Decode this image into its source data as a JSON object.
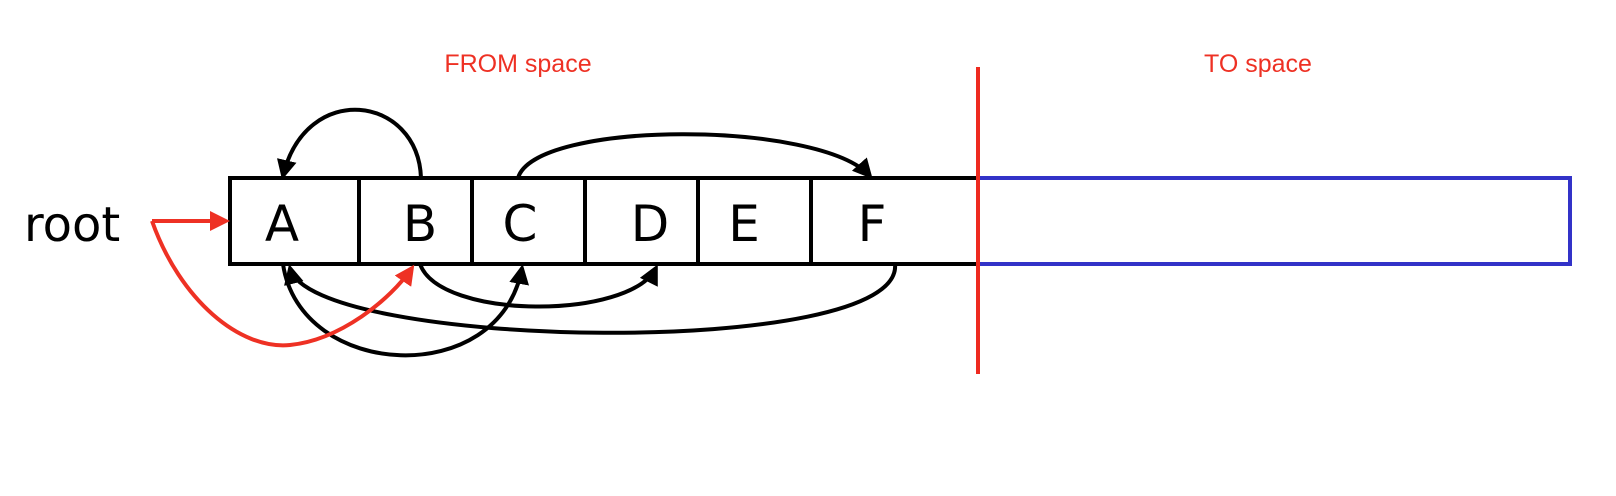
{
  "diagram": {
    "title_from": "FROM space",
    "title_to": "TO space",
    "root_label": "root",
    "objects": [
      "A",
      "B",
      "C",
      "D",
      "E",
      "F"
    ],
    "pointers": [
      {
        "from": "root",
        "to": "A",
        "style": "red"
      },
      {
        "from": "root",
        "to": "B",
        "style": "red"
      },
      {
        "from": "B",
        "to": "A",
        "style": "black"
      },
      {
        "from": "C",
        "to": "F",
        "style": "black"
      },
      {
        "from": "B",
        "to": "D",
        "style": "black"
      },
      {
        "from": "A",
        "to": "C",
        "style": "black"
      },
      {
        "from": "F",
        "to": "A",
        "style": "black"
      }
    ],
    "colors": {
      "label_red": "#ee3124",
      "divider_red": "#ee2a1f",
      "to_space_blue": "#3232c8",
      "ink": "#000000"
    }
  }
}
